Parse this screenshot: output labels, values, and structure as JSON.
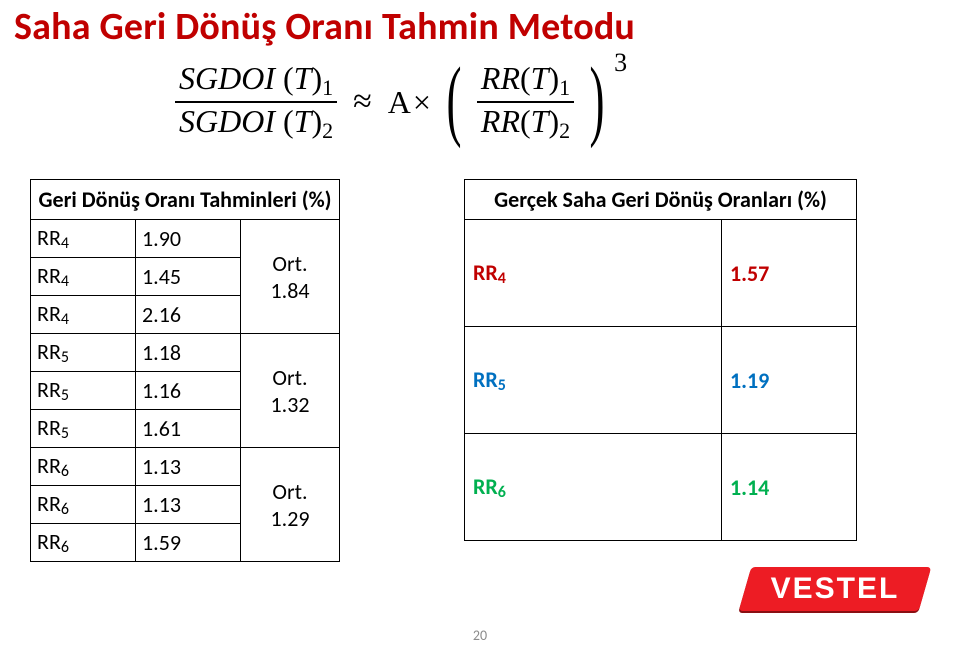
{
  "title": "Saha Geri Dönüş Oranı Tahmin Metodu",
  "formula": {
    "sgdoi": "SGDOI",
    "T": "T",
    "approx": "≈",
    "A": "A",
    "times": "×",
    "rr": "RR",
    "pow": "3"
  },
  "left_header": "Geri Dönüş Oranı Tahminleri (%)",
  "right_header": "Gerçek Saha Geri Dönüş Oranları (%)",
  "groups": [
    {
      "color": "red",
      "rows": [
        {
          "name": "RR",
          "sub": "4",
          "val": "1.90"
        },
        {
          "name": "RR",
          "sub": "4",
          "val": "1.45"
        },
        {
          "name": "RR",
          "sub": "4",
          "val": "2.16"
        }
      ],
      "ort_label": "Ort.",
      "ort_val": "1.84",
      "right_name": "RR",
      "right_sub": "4",
      "right_val": "1.57"
    },
    {
      "color": "blue",
      "rows": [
        {
          "name": "RR",
          "sub": "5",
          "val": "1.18"
        },
        {
          "name": "RR",
          "sub": "5",
          "val": "1.16"
        },
        {
          "name": "RR",
          "sub": "5",
          "val": "1.61"
        }
      ],
      "ort_label": "Ort.",
      "ort_val": "1.32",
      "right_name": "RR",
      "right_sub": "5",
      "right_val": "1.19"
    },
    {
      "color": "green",
      "rows": [
        {
          "name": "RR",
          "sub": "6",
          "val": "1.13"
        },
        {
          "name": "RR",
          "sub": "6",
          "val": "1.13"
        },
        {
          "name": "RR",
          "sub": "6",
          "val": "1.59"
        }
      ],
      "ort_label": "Ort.",
      "ort_val": "1.29",
      "right_name": "RR",
      "right_sub": "6",
      "right_val": "1.14"
    }
  ],
  "pagenum": "20",
  "logo_text": "VESTEL"
}
